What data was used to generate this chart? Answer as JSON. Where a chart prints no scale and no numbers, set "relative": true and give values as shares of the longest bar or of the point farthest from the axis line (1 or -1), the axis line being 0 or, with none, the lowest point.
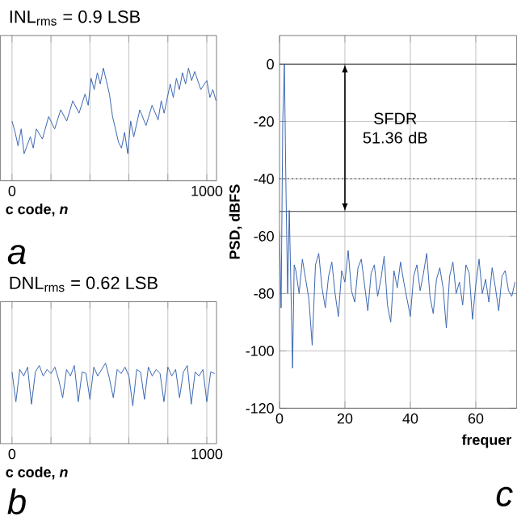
{
  "chart_data": [
    {
      "type": "line",
      "relative": true,
      "title": "INL$_{rms}$ = 0.9 LSB",
      "xlabel": "c code, *n*",
      "annotations": [
        "a"
      ],
      "grid": "x",
      "tick_labels": "x",
      "xlim": [
        -60,
        1050
      ],
      "xticks": [
        0,
        {
          "value": 200,
          "label": null
        },
        {
          "value": 400,
          "label": null
        },
        {
          "value": 600,
          "label": null
        },
        {
          "value": 800,
          "label": null
        },
        1000
      ],
      "x": [
        0,
        16,
        31,
        47,
        62,
        94,
        109,
        125,
        156,
        188,
        219,
        250,
        281,
        312,
        344,
        375,
        391,
        406,
        422,
        438,
        453,
        469,
        484,
        500,
        516,
        531,
        547,
        562,
        578,
        594,
        609,
        625,
        656,
        688,
        719,
        750,
        766,
        781,
        812,
        828,
        844,
        859,
        875,
        891,
        906,
        922,
        938,
        969,
        1000,
        1016,
        1031,
        1047
      ],
      "series": [
        {
          "color": "#3a67b1",
          "values": [
            0.53,
            0.43,
            0.31,
            0.46,
            0.24,
            0.39,
            0.29,
            0.46,
            0.37,
            0.57,
            0.46,
            0.63,
            0.53,
            0.71,
            0.6,
            0.77,
            0.67,
            0.91,
            0.81,
            0.96,
            0.86,
            1,
            0.89,
            0.77,
            0.57,
            0.46,
            0.34,
            0.29,
            0.43,
            0.24,
            0.53,
            0.39,
            0.63,
            0.49,
            0.67,
            0.54,
            0.71,
            0.6,
            0.86,
            0.74,
            0.91,
            0.81,
            0.96,
            0.86,
            1,
            0.89,
            0.97,
            0.81,
            0.89,
            0.74,
            0.81,
            0.71
          ]
        }
      ]
    },
    {
      "type": "line",
      "relative": true,
      "title": "DNL$_{rms}$ = 0.62 LSB",
      "xlabel": "c code, *n*",
      "annotations": [
        "b"
      ],
      "grid": "x",
      "tick_labels": "x",
      "xlim": [
        -60,
        1050
      ],
      "xticks": [
        0,
        {
          "value": 200,
          "label": null
        },
        {
          "value": 400,
          "label": null
        },
        {
          "value": 600,
          "label": null
        },
        {
          "value": 800,
          "label": null
        },
        1000
      ],
      "x": [
        0,
        20,
        40,
        60,
        80,
        100,
        120,
        140,
        160,
        180,
        200,
        220,
        240,
        260,
        280,
        300,
        320,
        340,
        360,
        380,
        400,
        420,
        440,
        460,
        480,
        500,
        520,
        540,
        560,
        580,
        600,
        620,
        640,
        660,
        680,
        700,
        720,
        740,
        760,
        780,
        800,
        820,
        840,
        860,
        880,
        900,
        920,
        940,
        960,
        980,
        1000,
        1020,
        1040
      ],
      "series": [
        {
          "color": "#3a67b1",
          "values": [
            0.89,
            0.52,
            0.92,
            0.84,
            0.95,
            0.49,
            0.89,
            0.97,
            0.84,
            0.92,
            0.87,
            0.95,
            0.79,
            0.57,
            0.92,
            0.84,
            0.97,
            0.52,
            0.89,
            0.87,
            0.55,
            0.95,
            0.84,
            0.92,
            1,
            0.81,
            0.57,
            0.92,
            0.87,
            0.95,
            0.84,
            0.47,
            0.92,
            0.89,
            0.55,
            0.95,
            0.84,
            0.92,
            0.87,
            0.52,
            0.95,
            0.84,
            0.92,
            0.57,
            0.89,
            0.97,
            0.49,
            0.89,
            0.84,
            0.92,
            0.52,
            0.89,
            0.87
          ]
        }
      ]
    },
    {
      "type": "line",
      "xlabel": "frequer",
      "ylabel": "PSD, dBFS",
      "annotations": [
        "SFDR 51.36 dB",
        "c"
      ],
      "grid": true,
      "xlim": [
        0,
        72.5
      ],
      "ylim": [
        -120,
        10
      ],
      "xticks": [
        0,
        20,
        40,
        60
      ],
      "yticks": [
        0,
        -20,
        -40,
        -60,
        -80,
        -100,
        -120
      ],
      "ref_lines": [
        {
          "axis": "y",
          "value": 0,
          "color": "#404040",
          "line_style": "solid"
        },
        {
          "axis": "y",
          "value": -51.36,
          "color": "#404040",
          "line_style": "solid"
        },
        {
          "axis": "y",
          "value": -40,
          "color": "#000000",
          "line_style": "dotted"
        }
      ],
      "x": [
        0,
        0.5,
        1,
        1.5,
        2,
        2.5,
        3,
        3.5,
        4,
        4.5,
        5,
        6,
        7,
        8,
        9,
        10,
        11,
        12,
        13,
        14,
        15,
        16,
        17,
        18,
        19,
        20,
        21,
        22,
        23,
        24,
        25,
        26,
        27,
        28,
        29,
        30,
        31,
        32,
        33,
        34,
        35,
        36,
        37,
        38,
        39,
        40,
        41,
        42,
        43,
        44,
        45,
        46,
        47,
        48,
        49,
        50,
        51,
        52,
        53,
        54,
        55,
        56,
        57,
        58,
        59,
        60,
        61,
        62,
        63,
        64,
        65,
        66,
        67,
        68,
        69,
        70,
        71,
        72
      ],
      "series": [
        {
          "color": "#3a67b1",
          "values": [
            -58,
            -85,
            -20,
            0,
            -45,
            -80,
            -51,
            -78,
            -106,
            -70,
            -72,
            -80,
            -68,
            -75,
            -82,
            -98,
            -70,
            -66,
            -78,
            -85,
            -74,
            -69,
            -80,
            -88,
            -72,
            -76,
            -65,
            -79,
            -83,
            -71,
            -68,
            -77,
            -86,
            -73,
            -70,
            -81,
            -75,
            -67,
            -84,
            -90,
            -72,
            -78,
            -69,
            -76,
            -82,
            -88,
            -74,
            -70,
            -79,
            -73,
            -66,
            -81,
            -87,
            -75,
            -71,
            -78,
            -92,
            -74,
            -69,
            -80,
            -76,
            -84,
            -70,
            -73,
            -89,
            -77,
            -68,
            -80,
            -75,
            -83,
            -71,
            -78,
            -86,
            -74,
            -72,
            -79,
            -81,
            -76
          ]
        }
      ]
    }
  ]
}
